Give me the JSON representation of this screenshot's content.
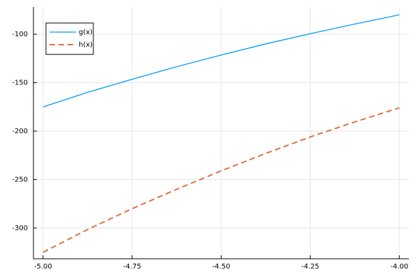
{
  "chart_data": {
    "type": "line",
    "x": [
      -5,
      -4.875,
      -4.75,
      -4.625,
      -4.5,
      -4.375,
      -4.25,
      -4.125,
      -4
    ],
    "series": [
      {
        "name": "g(x)",
        "color": "#009af9",
        "dash": false,
        "values": [
          -175,
          -160,
          -146.5,
          -133.5,
          -121.5,
          -110,
          -99.5,
          -89.5,
          -80
        ]
      },
      {
        "name": "h(x)",
        "color": "#e26f46",
        "dash": true,
        "values": [
          -325,
          -301.5,
          -280,
          -260,
          -241,
          -223,
          -206,
          -190.5,
          -176
        ]
      }
    ],
    "xlim": [
      -5.027,
      -3.973
    ],
    "ylim": [
      -331.7,
      -71.9
    ],
    "xticks": [
      {
        "value": -5,
        "label": "-5.00"
      },
      {
        "value": -4.75,
        "label": "-4.75"
      },
      {
        "value": -4.5,
        "label": "-4.50"
      },
      {
        "value": -4.25,
        "label": "-4.25"
      },
      {
        "value": -4,
        "label": "-4.00"
      }
    ],
    "yticks": [
      -300,
      -250,
      -200,
      -150,
      -100
    ],
    "grid": true,
    "legend": "top-left"
  }
}
